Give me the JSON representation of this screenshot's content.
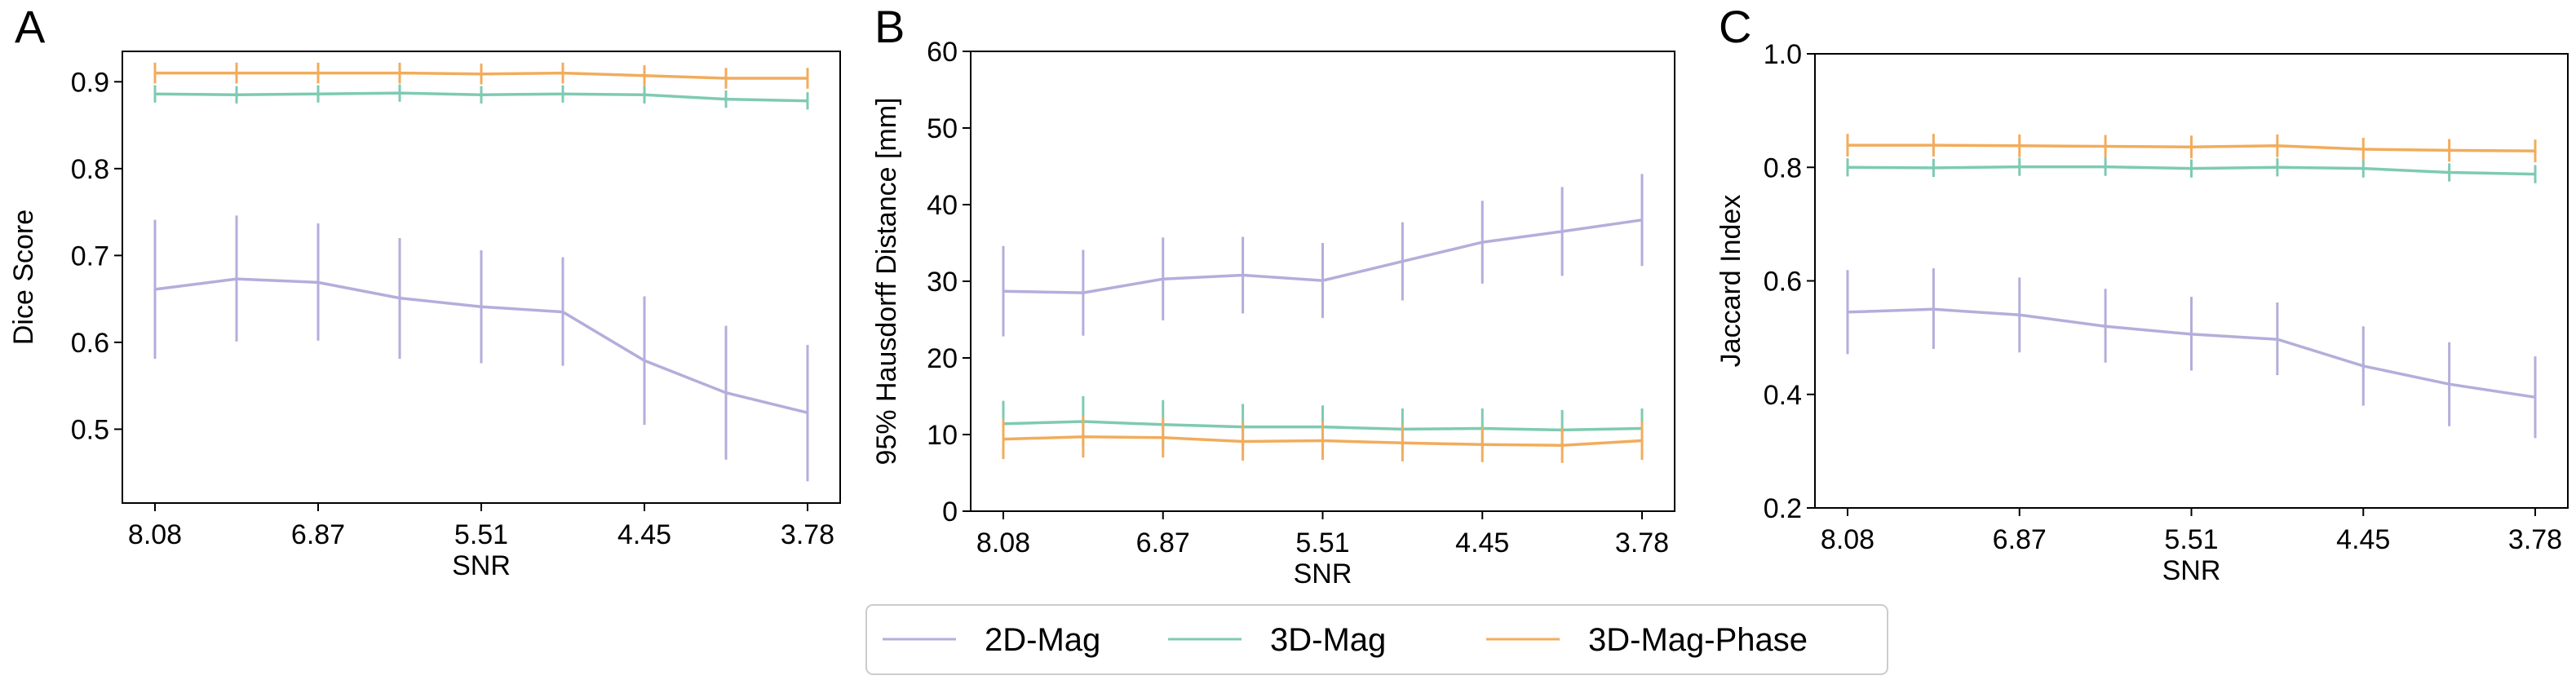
{
  "chart_data": [
    {
      "type": "line",
      "panel_letter": "A",
      "title": "",
      "xlabel": "SNR",
      "ylabel": "Dice Score",
      "x_index": [
        0,
        1,
        2,
        3,
        4,
        5,
        6,
        7,
        8
      ],
      "xtick_labels": [
        "8.08",
        "6.87",
        "5.51",
        "4.45",
        "3.78"
      ],
      "xtick_positions": [
        0,
        2,
        4,
        6,
        8
      ],
      "ylim": [
        0.415,
        0.935
      ],
      "yticks": [
        0.5,
        0.6,
        0.7,
        0.8,
        0.9
      ],
      "ytick_labels": [
        "0.5",
        "0.6",
        "0.7",
        "0.8",
        "0.9"
      ],
      "grid": false,
      "series": [
        {
          "name": "2D-Mag",
          "color": "#b3aedb",
          "values": [
            0.661,
            0.673,
            0.669,
            0.651,
            0.641,
            0.635,
            0.579,
            0.542,
            0.519
          ],
          "err_low": [
            0.581,
            0.601,
            0.602,
            0.581,
            0.576,
            0.573,
            0.505,
            0.465,
            0.44
          ],
          "err_high": [
            0.741,
            0.746,
            0.737,
            0.72,
            0.706,
            0.698,
            0.653,
            0.619,
            0.597
          ]
        },
        {
          "name": "3D-Mag",
          "color": "#7ecab3",
          "values": [
            0.886,
            0.885,
            0.886,
            0.887,
            0.885,
            0.886,
            0.885,
            0.88,
            0.878
          ],
          "err_low": [
            0.876,
            0.875,
            0.876,
            0.877,
            0.875,
            0.876,
            0.875,
            0.87,
            0.868
          ],
          "err_high": [
            0.896,
            0.895,
            0.896,
            0.897,
            0.895,
            0.896,
            0.895,
            0.89,
            0.888
          ]
        },
        {
          "name": "3D-Mag-Phase",
          "color": "#f2ac5c",
          "values": [
            0.91,
            0.91,
            0.91,
            0.91,
            0.909,
            0.91,
            0.907,
            0.904,
            0.904
          ],
          "err_low": [
            0.898,
            0.898,
            0.898,
            0.898,
            0.897,
            0.898,
            0.895,
            0.892,
            0.892
          ],
          "err_high": [
            0.922,
            0.922,
            0.922,
            0.922,
            0.921,
            0.922,
            0.919,
            0.916,
            0.916
          ]
        }
      ]
    },
    {
      "type": "line",
      "panel_letter": "B",
      "title": "",
      "xlabel": "SNR",
      "ylabel": "95% Hausdorff Distance [mm]",
      "x_index": [
        0,
        1,
        2,
        3,
        4,
        5,
        6,
        7,
        8
      ],
      "xtick_labels": [
        "8.08",
        "6.87",
        "5.51",
        "4.45",
        "3.78"
      ],
      "xtick_positions": [
        0,
        2,
        4,
        6,
        8
      ],
      "ylim": [
        0,
        60
      ],
      "yticks": [
        0,
        10,
        20,
        30,
        40,
        50,
        60
      ],
      "ytick_labels": [
        "0",
        "10",
        "20",
        "30",
        "40",
        "50",
        "60"
      ],
      "grid": false,
      "series": [
        {
          "name": "2D-Mag",
          "color": "#b3aedb",
          "values": [
            28.7,
            28.5,
            30.3,
            30.8,
            30.1,
            32.6,
            35.1,
            36.5,
            38.0
          ],
          "err_low": [
            22.8,
            22.9,
            24.9,
            25.8,
            25.2,
            27.5,
            29.7,
            30.7,
            32.0
          ],
          "err_high": [
            34.6,
            34.1,
            35.7,
            35.8,
            35.0,
            37.7,
            40.5,
            42.3,
            44.0
          ]
        },
        {
          "name": "3D-Mag",
          "color": "#7ecab3",
          "values": [
            11.4,
            11.7,
            11.3,
            11.0,
            11.0,
            10.7,
            10.8,
            10.6,
            10.8
          ],
          "err_low": [
            8.4,
            8.4,
            8.1,
            8.0,
            8.2,
            8.0,
            8.2,
            8.0,
            8.2
          ],
          "err_high": [
            14.4,
            15.0,
            14.5,
            14.0,
            13.8,
            13.4,
            13.4,
            13.2,
            13.4
          ]
        },
        {
          "name": "3D-Mag-Phase",
          "color": "#f2ac5c",
          "values": [
            9.4,
            9.7,
            9.6,
            9.1,
            9.2,
            8.9,
            8.7,
            8.6,
            9.2
          ],
          "err_low": [
            6.8,
            7.0,
            7.0,
            6.6,
            6.7,
            6.5,
            6.4,
            6.3,
            6.7
          ],
          "err_high": [
            12.0,
            12.4,
            12.2,
            11.6,
            11.7,
            11.3,
            11.0,
            10.9,
            11.7
          ]
        }
      ]
    },
    {
      "type": "line",
      "panel_letter": "C",
      "title": "",
      "xlabel": "SNR",
      "ylabel": "Jaccard Index",
      "x_index": [
        0,
        1,
        2,
        3,
        4,
        5,
        6,
        7,
        8
      ],
      "xtick_labels": [
        "8.08",
        "6.87",
        "5.51",
        "4.45",
        "3.78"
      ],
      "xtick_positions": [
        0,
        2,
        4,
        6,
        8
      ],
      "ylim": [
        0.2,
        1.0
      ],
      "yticks": [
        0.2,
        0.4,
        0.6,
        0.8,
        1.0
      ],
      "ytick_labels": [
        "0.2",
        "0.4",
        "0.6",
        "0.8",
        "1.0"
      ],
      "grid": false,
      "series": [
        {
          "name": "2D-Mag",
          "color": "#b3aedb",
          "values": [
            0.545,
            0.55,
            0.54,
            0.52,
            0.506,
            0.497,
            0.45,
            0.418,
            0.395
          ],
          "err_low": [
            0.471,
            0.48,
            0.474,
            0.456,
            0.442,
            0.434,
            0.38,
            0.344,
            0.323
          ],
          "err_high": [
            0.619,
            0.622,
            0.606,
            0.586,
            0.572,
            0.562,
            0.52,
            0.492,
            0.467
          ]
        },
        {
          "name": "3D-Mag",
          "color": "#7ecab3",
          "values": [
            0.8,
            0.799,
            0.801,
            0.801,
            0.798,
            0.8,
            0.798,
            0.791,
            0.788
          ],
          "err_low": [
            0.784,
            0.783,
            0.785,
            0.785,
            0.782,
            0.784,
            0.782,
            0.775,
            0.772
          ],
          "err_high": [
            0.816,
            0.815,
            0.817,
            0.817,
            0.814,
            0.816,
            0.814,
            0.807,
            0.804
          ]
        },
        {
          "name": "3D-Mag-Phase",
          "color": "#f2ac5c",
          "values": [
            0.839,
            0.839,
            0.838,
            0.837,
            0.836,
            0.838,
            0.832,
            0.83,
            0.829
          ],
          "err_low": [
            0.819,
            0.819,
            0.818,
            0.817,
            0.816,
            0.818,
            0.812,
            0.81,
            0.809
          ],
          "err_high": [
            0.859,
            0.859,
            0.858,
            0.857,
            0.856,
            0.858,
            0.852,
            0.85,
            0.849
          ]
        }
      ]
    }
  ],
  "legend": {
    "position": "bottom-center",
    "entries": [
      {
        "label": "2D-Mag",
        "color": "#b3aedb"
      },
      {
        "label": "3D-Mag",
        "color": "#7ecab3"
      },
      {
        "label": "3D-Mag-Phase",
        "color": "#f2ac5c"
      }
    ]
  }
}
